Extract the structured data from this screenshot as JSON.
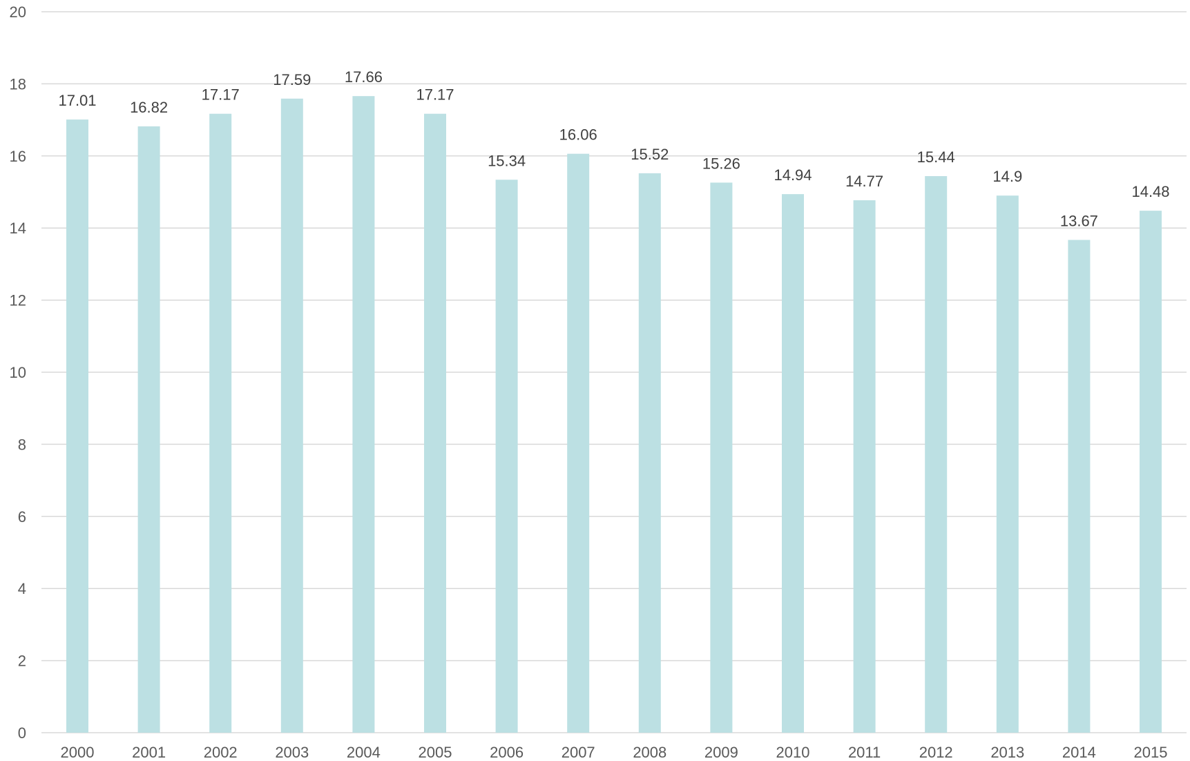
{
  "chart_data": {
    "type": "bar",
    "title": "",
    "xlabel": "",
    "ylabel": "",
    "categories": [
      "2000",
      "2001",
      "2002",
      "2003",
      "2004",
      "2005",
      "2006",
      "2007",
      "2008",
      "2009",
      "2010",
      "2011",
      "2012",
      "2013",
      "2014",
      "2015"
    ],
    "series": [
      {
        "values": [
          17.01,
          16.82,
          17.17,
          17.59,
          17.66,
          17.17,
          15.34,
          16.06,
          15.52,
          15.26,
          14.94,
          14.77,
          15.44,
          14.9,
          13.67,
          14.48
        ],
        "labels": [
          "17.01",
          "16.82",
          "17.17",
          "17.59",
          "17.66",
          "17.17",
          "15.34",
          "16.06",
          "15.52",
          "15.26",
          "14.94",
          "14.77",
          "15.44",
          "14.9",
          "13.67",
          "14.48"
        ],
        "color": "#bce0e3"
      }
    ],
    "ylim": [
      0,
      20
    ],
    "yticks": [
      "0",
      "2",
      "4",
      "6",
      "8",
      "10",
      "12",
      "14",
      "16",
      "18",
      "20"
    ],
    "grid": true,
    "legend": "none"
  }
}
